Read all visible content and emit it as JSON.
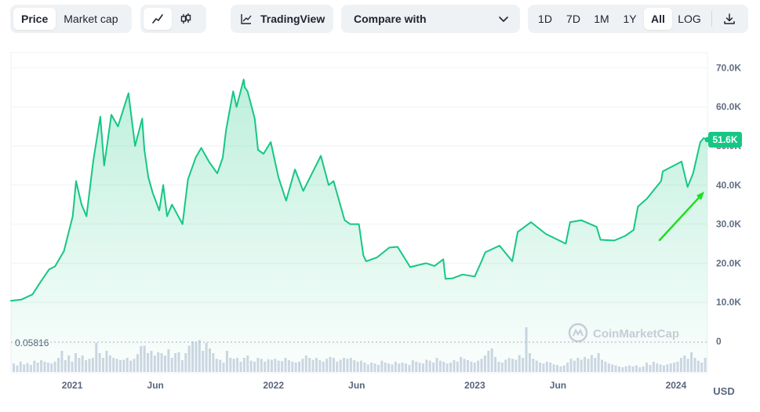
{
  "toolbar": {
    "type_tabs": [
      {
        "label": "Price",
        "active": true
      },
      {
        "label": "Market cap",
        "active": false
      }
    ],
    "mode_icons": [
      {
        "icon": "line-chart-icon",
        "active": true
      },
      {
        "icon": "candlestick-icon",
        "active": false
      }
    ],
    "tradingview_label": "TradingView",
    "compare_label": "Compare with",
    "ranges": [
      {
        "label": "1D",
        "active": false
      },
      {
        "label": "7D",
        "active": false
      },
      {
        "label": "1M",
        "active": false
      },
      {
        "label": "1Y",
        "active": false
      },
      {
        "label": "All",
        "active": true
      },
      {
        "label": "LOG",
        "active": false
      }
    ],
    "download_icon": "download-icon"
  },
  "colors": {
    "line": "#16c784",
    "area": "#16c784",
    "volume": "#cfd6e4",
    "axis_text": "#616e85",
    "grid": "#eff2f5",
    "badge": "#16c784",
    "arrow": "#22dd22"
  },
  "chart_data": {
    "type": "line",
    "title": "",
    "xlabel": "",
    "ylabel": "",
    "currency": "USD",
    "current_price_label": "51.6K",
    "min_volume_label": "0.05816",
    "watermark": "CoinMarketCap",
    "ylim": [
      0,
      70000
    ],
    "grid": true,
    "y_ticks": [
      "0",
      "10.0K",
      "20.0K",
      "30.0K",
      "40.0K",
      "50.0K",
      "60.0K",
      "70.0K"
    ],
    "y_tick_values": [
      0,
      10000,
      20000,
      30000,
      40000,
      50000,
      60000,
      70000
    ],
    "x_ticks": [
      "2021",
      "Jun",
      "2022",
      "Jun",
      "2023",
      "Jun",
      "2024"
    ],
    "x_tick_dates": [
      "2021-01-01",
      "2021-06-01",
      "2022-01-01",
      "2022-06-01",
      "2023-01-01",
      "2023-06-01",
      "2024-01-01"
    ],
    "x_range": [
      "2020-09-12",
      "2024-02-27"
    ],
    "series": [
      {
        "type": "line",
        "x": [
          "2020-09-12",
          "2020-10-01",
          "2020-10-21",
          "2020-11-05",
          "2020-11-20",
          "2020-12-01",
          "2020-12-17",
          "2021-01-02",
          "2021-01-08",
          "2021-01-18",
          "2021-01-27",
          "2021-02-08",
          "2021-02-21",
          "2021-02-28",
          "2021-03-13",
          "2021-03-25",
          "2021-04-13",
          "2021-04-25",
          "2021-05-08",
          "2021-05-12",
          "2021-05-19",
          "2021-05-27",
          "2021-06-08",
          "2021-06-15",
          "2021-06-22",
          "2021-07-01",
          "2021-07-20",
          "2021-07-30",
          "2021-08-13",
          "2021-08-23",
          "2021-09-06",
          "2021-09-21",
          "2021-10-01",
          "2021-10-07",
          "2021-10-20",
          "2021-10-26",
          "2021-11-08",
          "2021-11-10",
          "2021-11-15",
          "2021-11-28",
          "2021-12-04",
          "2021-12-14",
          "2021-12-27",
          "2022-01-10",
          "2022-01-24",
          "2022-02-09",
          "2022-02-24",
          "2022-03-28",
          "2022-04-11",
          "2022-04-20",
          "2022-05-10",
          "2022-05-20",
          "2022-06-05",
          "2022-06-13",
          "2022-06-18",
          "2022-07-08",
          "2022-07-30",
          "2022-08-14",
          "2022-09-06",
          "2022-09-20",
          "2022-10-05",
          "2022-10-20",
          "2022-11-05",
          "2022-11-09",
          "2022-11-21",
          "2022-12-10",
          "2023-01-01",
          "2023-01-14",
          "2023-01-20",
          "2023-02-15",
          "2023-03-10",
          "2023-03-20",
          "2023-04-13",
          "2023-05-10",
          "2023-06-15",
          "2023-06-23",
          "2023-07-13",
          "2023-08-10",
          "2023-08-17",
          "2023-09-11",
          "2023-10-01",
          "2023-10-16",
          "2023-10-24",
          "2023-11-09",
          "2023-12-05",
          "2023-12-08",
          "2024-01-11",
          "2024-01-22",
          "2024-02-01",
          "2024-02-14",
          "2024-02-20",
          "2024-02-27"
        ],
        "values": [
          10400,
          10700,
          12000,
          15300,
          18400,
          19200,
          23100,
          32000,
          41000,
          35000,
          32000,
          46000,
          57500,
          45000,
          58000,
          55000,
          63500,
          50000,
          57000,
          49000,
          42000,
          38000,
          33500,
          40000,
          32000,
          35000,
          30000,
          41500,
          47000,
          49500,
          46000,
          43000,
          47000,
          54000,
          64000,
          60000,
          67000,
          65000,
          64000,
          57000,
          49000,
          48000,
          51000,
          42000,
          36000,
          44000,
          38500,
          47500,
          40000,
          41000,
          31000,
          30000,
          30000,
          22000,
          20500,
          21500,
          24000,
          24200,
          19000,
          19500,
          20000,
          19300,
          21000,
          16000,
          16100,
          17100,
          16600,
          20700,
          22800,
          24500,
          20500,
          28000,
          30500,
          27500,
          25000,
          30500,
          31000,
          29300,
          26000,
          25800,
          27000,
          28500,
          34500,
          36500,
          41000,
          43500,
          46000,
          39500,
          43000,
          51000,
          52000,
          51600
        ]
      },
      {
        "type": "bar",
        "name": "Volume",
        "relative_heights": [
          0.18,
          0.14,
          0.22,
          0.16,
          0.19,
          0.15,
          0.24,
          0.2,
          0.25,
          0.22,
          0.2,
          0.18,
          0.22,
          0.3,
          0.45,
          0.25,
          0.35,
          0.22,
          0.4,
          0.3,
          0.35,
          0.25,
          0.28,
          0.3,
          0.62,
          0.4,
          0.3,
          0.45,
          0.35,
          0.3,
          0.28,
          0.25,
          0.26,
          0.3,
          0.24,
          0.28,
          0.38,
          0.55,
          0.56,
          0.4,
          0.45,
          0.35,
          0.42,
          0.4,
          0.35,
          0.48,
          0.3,
          0.4,
          0.42,
          0.25,
          0.4,
          0.56,
          0.65,
          0.64,
          0.68,
          0.45,
          0.62,
          0.5,
          0.4,
          0.28,
          0.26,
          0.2,
          0.45,
          0.3,
          0.28,
          0.3,
          0.22,
          0.3,
          0.35,
          0.24,
          0.22,
          0.3,
          0.28,
          0.22,
          0.27,
          0.26,
          0.28,
          0.24,
          0.23,
          0.3,
          0.25,
          0.22,
          0.2,
          0.22,
          0.28,
          0.35,
          0.3,
          0.26,
          0.3,
          0.25,
          0.22,
          0.28,
          0.32,
          0.3,
          0.22,
          0.26,
          0.3,
          0.28,
          0.3,
          0.25,
          0.22,
          0.24,
          0.2,
          0.16,
          0.2,
          0.18,
          0.15,
          0.24,
          0.2,
          0.18,
          0.16,
          0.22,
          0.18,
          0.2,
          0.18,
          0.15,
          0.25,
          0.22,
          0.2,
          0.18,
          0.26,
          0.24,
          0.2,
          0.3,
          0.24,
          0.22,
          0.18,
          0.2,
          0.25,
          0.22,
          0.32,
          0.28,
          0.25,
          0.22,
          0.2,
          0.24,
          0.28,
          0.35,
          0.45,
          0.5,
          0.32,
          0.22,
          0.2,
          0.26,
          0.3,
          0.28,
          0.26,
          0.36,
          0.3,
          0.95,
          0.4,
          0.28,
          0.24,
          0.2,
          0.18,
          0.22,
          0.2,
          0.16,
          0.15,
          0.12,
          0.14,
          0.2,
          0.28,
          0.24,
          0.3,
          0.26,
          0.32,
          0.28,
          0.36,
          0.3,
          0.4,
          0.26,
          0.22,
          0.18,
          0.16,
          0.14,
          0.12,
          0.1,
          0.12,
          0.14,
          0.12,
          0.14,
          0.1,
          0.12,
          0.2,
          0.15,
          0.22,
          0.18,
          0.16,
          0.14,
          0.16,
          0.18,
          0.2,
          0.22,
          0.3,
          0.35,
          0.28,
          0.42,
          0.3,
          0.24,
          0.2,
          0.3
        ]
      }
    ],
    "annotation": "green arrow pointing up-right toward the latest price"
  }
}
